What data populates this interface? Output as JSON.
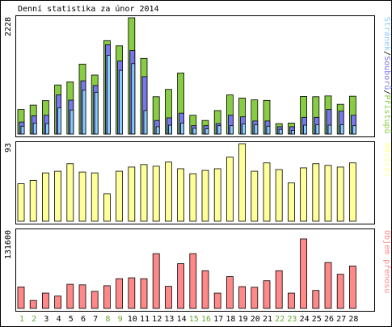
{
  "title": "Denní statistika za únor 2014",
  "colors": {
    "background": "#ffffff",
    "frame": "#000000",
    "pages": "#88cc44",
    "files": "#7777ee",
    "hits": "#88ccff",
    "visits": "#ffff99",
    "kbytes": "#ff8888",
    "day_default": "#000000",
    "day_weekend": "#66aa33"
  },
  "chart_data": [
    {
      "type": "bar",
      "title": "Denní statistika za únor 2014",
      "categories": [
        "1",
        "2",
        "3",
        "4",
        "5",
        "6",
        "7",
        "8",
        "9",
        "10",
        "11",
        "12",
        "13",
        "14",
        "15",
        "16",
        "17",
        "18",
        "19",
        "20",
        "21",
        "22",
        "23",
        "24",
        "25",
        "26",
        "27",
        "28"
      ],
      "ymax_label": "2228",
      "ylim": [
        0,
        2228
      ],
      "legend": [
        "Stránek",
        "Souborů",
        "Přístupů"
      ],
      "legend_separator": "/",
      "series": [
        {
          "name": "Přístupů",
          "color": "#88cc44",
          "values": [
            470,
            555,
            640,
            940,
            1000,
            1340,
            1130,
            1790,
            1690,
            2228,
            1450,
            715,
            855,
            1170,
            360,
            260,
            450,
            750,
            690,
            655,
            645,
            200,
            210,
            720,
            715,
            730,
            570,
            725
          ]
        },
        {
          "name": "Souborů",
          "color": "#7777ee",
          "values": [
            230,
            350,
            360,
            750,
            650,
            1020,
            930,
            1710,
            1400,
            1600,
            1100,
            260,
            310,
            400,
            160,
            160,
            200,
            360,
            330,
            250,
            250,
            140,
            140,
            320,
            320,
            470,
            440,
            360
          ]
        },
        {
          "name": "Stránek",
          "color": "#88ccff",
          "values": [
            150,
            210,
            200,
            500,
            460,
            840,
            800,
            1510,
            1220,
            1350,
            450,
            140,
            170,
            210,
            110,
            100,
            160,
            160,
            195,
            180,
            150,
            90,
            70,
            170,
            180,
            170,
            180,
            160
          ]
        }
      ]
    },
    {
      "type": "bar",
      "categories": [
        "1",
        "2",
        "3",
        "4",
        "5",
        "6",
        "7",
        "8",
        "9",
        "10",
        "11",
        "12",
        "13",
        "14",
        "15",
        "16",
        "17",
        "18",
        "19",
        "20",
        "21",
        "22",
        "23",
        "24",
        "25",
        "26",
        "27",
        "28"
      ],
      "ymax_label": "93",
      "ylim": [
        0,
        93
      ],
      "legend": [
        "Návštěv"
      ],
      "series": [
        {
          "name": "Návštěv",
          "color": "#ffff99",
          "values": [
            45,
            49,
            58,
            60,
            69,
            59,
            58,
            33,
            60,
            65,
            68,
            66,
            71,
            63,
            57,
            61,
            63,
            77,
            93,
            60,
            70,
            62,
            46,
            64,
            69,
            67,
            65,
            70
          ]
        }
      ]
    },
    {
      "type": "bar",
      "categories": [
        "1",
        "2",
        "3",
        "4",
        "5",
        "6",
        "7",
        "8",
        "9",
        "10",
        "11",
        "12",
        "13",
        "14",
        "15",
        "16",
        "17",
        "18",
        "19",
        "20",
        "21",
        "22",
        "23",
        "24",
        "25",
        "26",
        "27",
        "28"
      ],
      "ymax_label": "131600",
      "ylim": [
        0,
        131600
      ],
      "legend": [
        "Objem přenosu"
      ],
      "series": [
        {
          "name": "Objem přenosu",
          "color": "#ff8888",
          "values": [
            36500,
            13500,
            26000,
            21000,
            41000,
            40000,
            29000,
            38500,
            50500,
            52000,
            50500,
            93000,
            37500,
            76000,
            93000,
            64000,
            26000,
            54000,
            37000,
            36000,
            47000,
            64000,
            26000,
            118000,
            30500,
            78000,
            58000,
            72000
          ]
        }
      ]
    }
  ],
  "weekend_days": [
    "1",
    "2",
    "8",
    "9",
    "15",
    "16",
    "22",
    "23"
  ]
}
